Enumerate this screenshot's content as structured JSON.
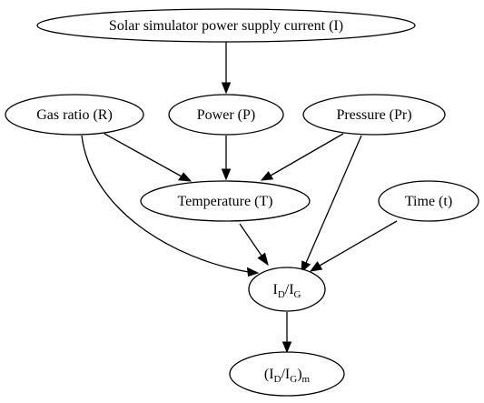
{
  "nodes": {
    "current": {
      "label": "Solar simulator power supply current (I)"
    },
    "gas_ratio": {
      "label": "Gas ratio (R)"
    },
    "power": {
      "label": "Power (P)"
    },
    "pressure": {
      "label": "Pressure (Pr)"
    },
    "temperature": {
      "label": "Temperature (T)"
    },
    "time": {
      "label": "Time (t)"
    },
    "id_ig": {
      "main1": "I",
      "sub1": "D",
      "sep": "/",
      "main2": "I",
      "sub2": "G"
    },
    "id_ig_m": {
      "open": "(I",
      "sub1": "D",
      "sep": "/I",
      "sub2": "G",
      "close": ")",
      "sub3": "m"
    }
  },
  "edges": [
    {
      "from": "current",
      "to": "power"
    },
    {
      "from": "gas_ratio",
      "to": "temperature"
    },
    {
      "from": "power",
      "to": "temperature"
    },
    {
      "from": "pressure",
      "to": "temperature"
    },
    {
      "from": "gas_ratio",
      "to": "id_ig"
    },
    {
      "from": "temperature",
      "to": "id_ig"
    },
    {
      "from": "pressure",
      "to": "id_ig"
    },
    {
      "from": "time",
      "to": "id_ig"
    },
    {
      "from": "id_ig",
      "to": "id_ig_m"
    }
  ],
  "colors": {
    "stroke": "#000000",
    "fill": "#ffffff",
    "background": "#ffffff"
  }
}
